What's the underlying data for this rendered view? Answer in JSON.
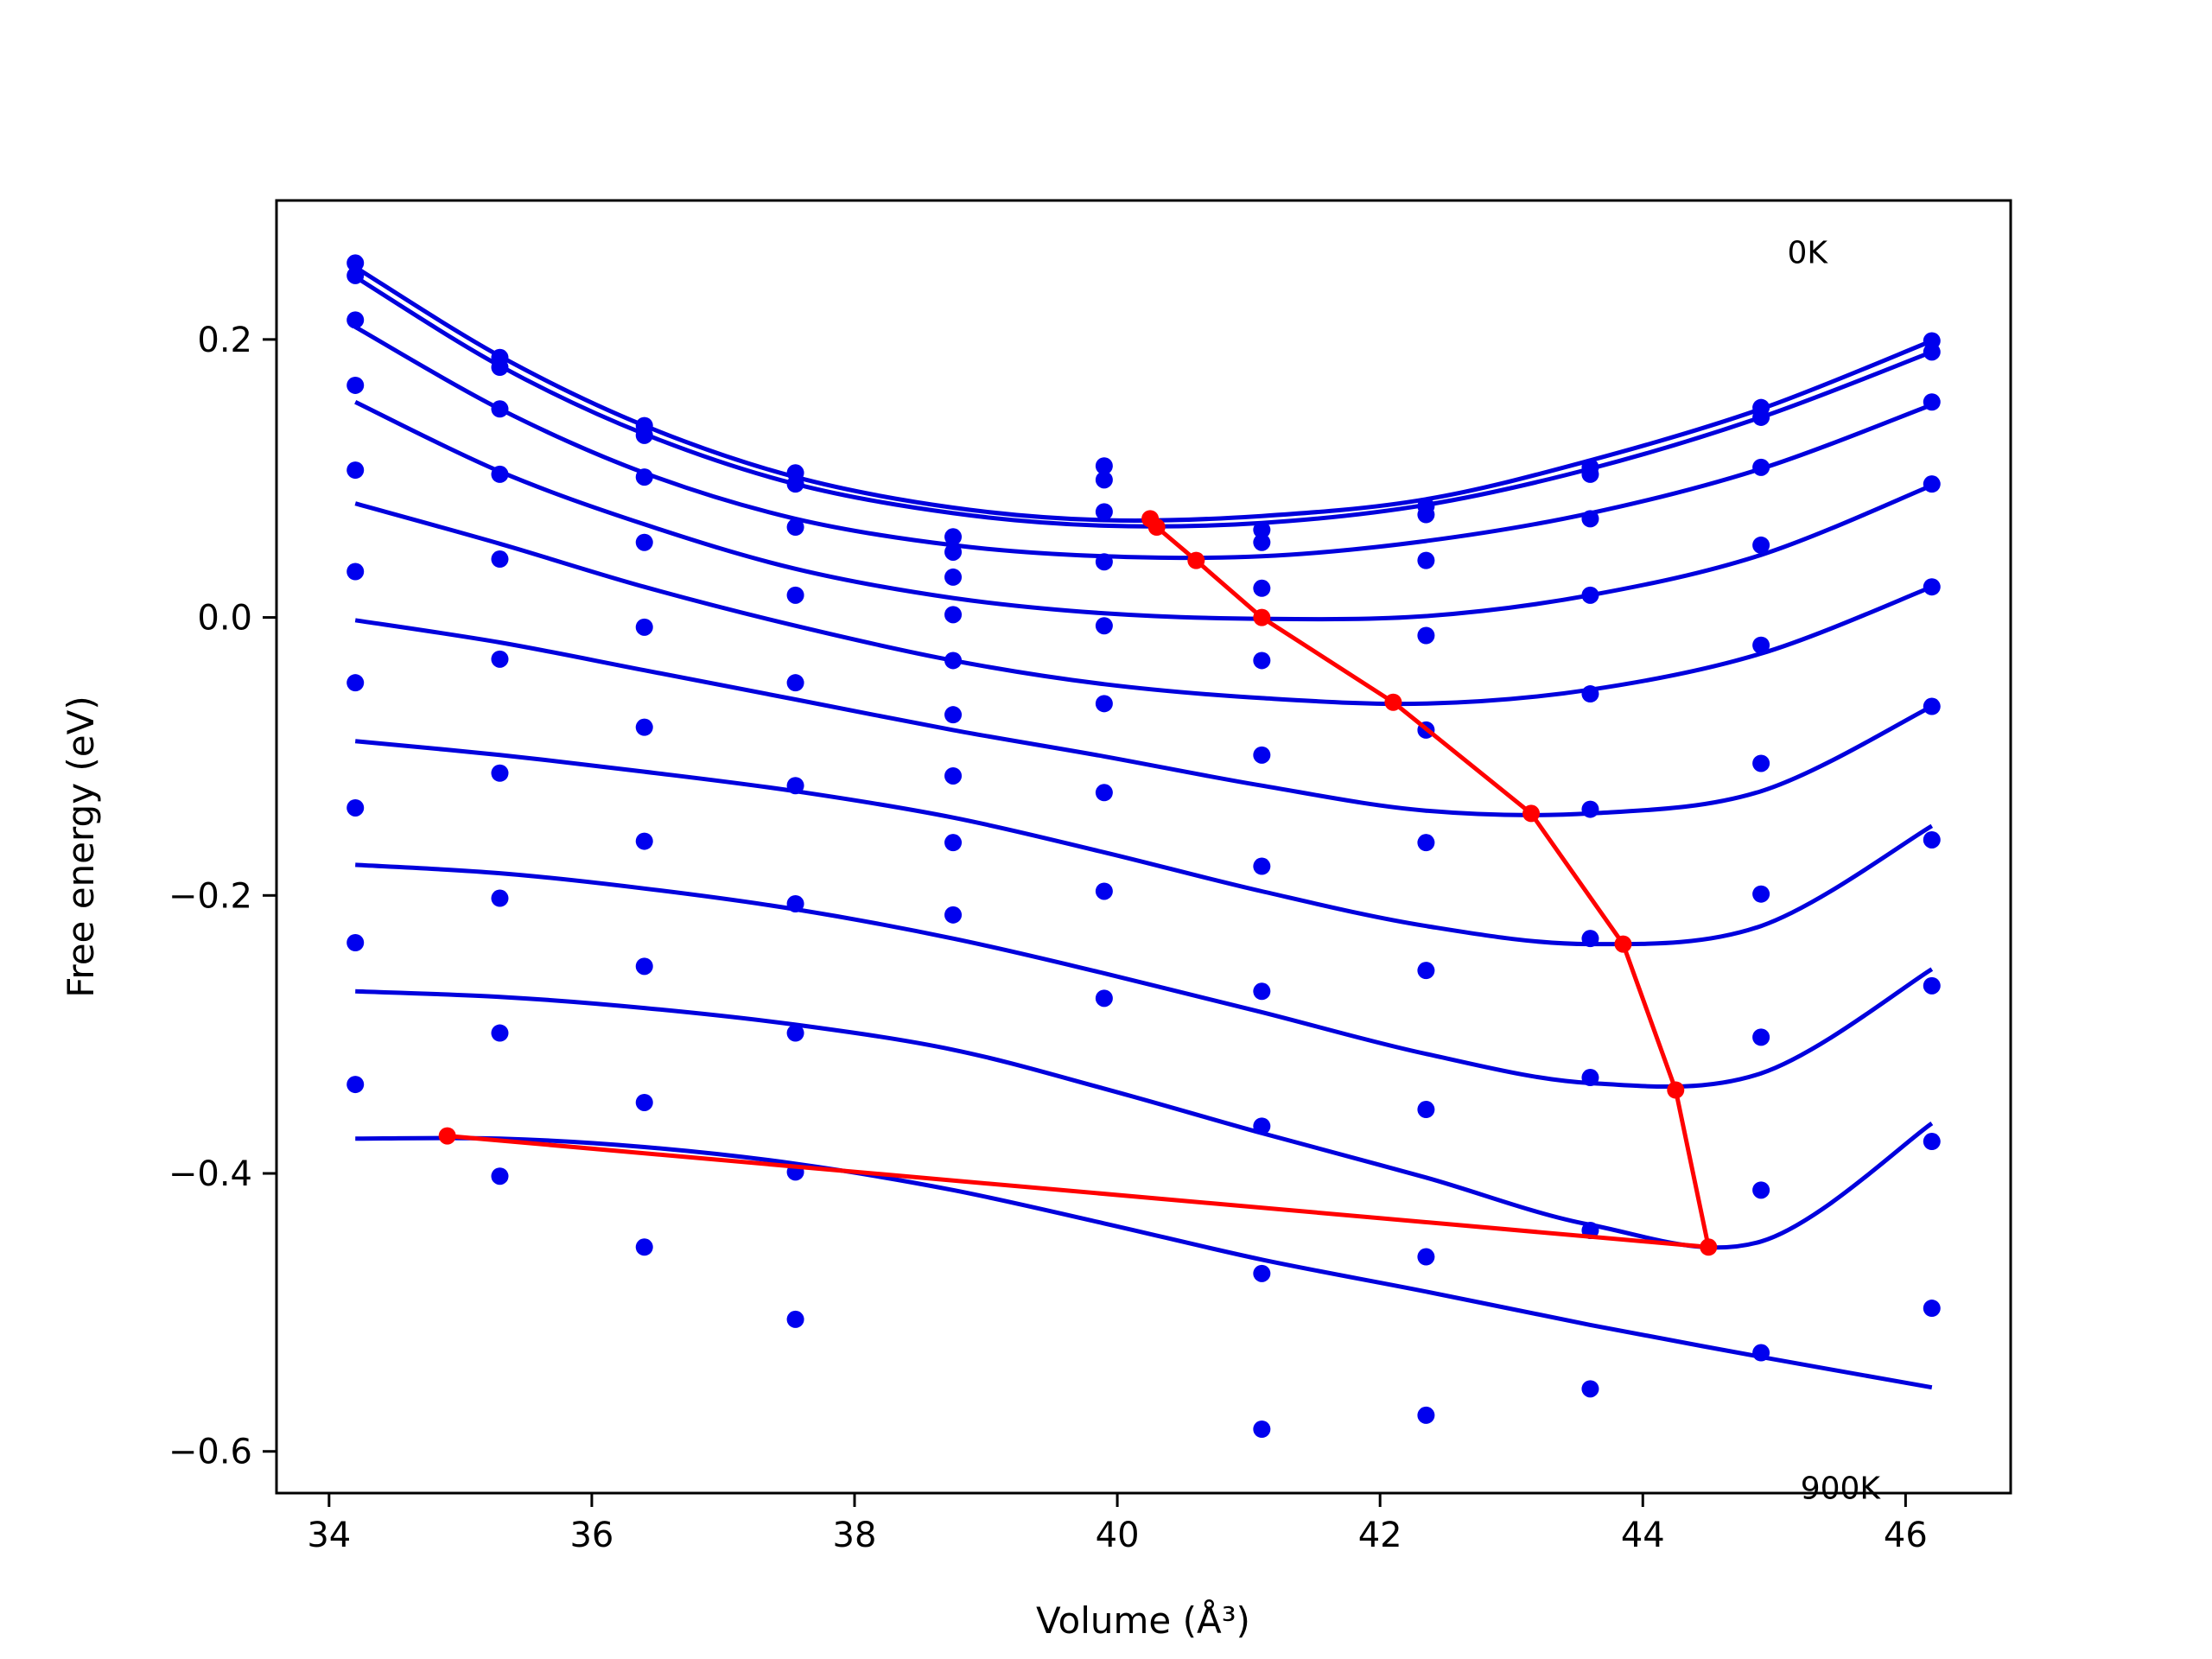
{
  "chart_data": {
    "type": "line",
    "xlabel": "Volume (Å³)",
    "ylabel": "Free energy (eV)",
    "xlim": [
      33.6,
      46.8
    ],
    "ylim": [
      -0.63,
      0.3
    ],
    "xticks": [
      34,
      36,
      38,
      40,
      42,
      44,
      46
    ],
    "yticks": [
      -0.6,
      -0.4,
      -0.2,
      0.0,
      0.2
    ],
    "xtick_labels": [
      "34",
      "36",
      "38",
      "40",
      "42",
      "44",
      "46"
    ],
    "ytick_labels": [
      "−0.6",
      "−0.4",
      "−0.2",
      "0.0",
      "0.2"
    ],
    "grid": false,
    "annotations": [
      {
        "text": "0K",
        "x": 45.1,
        "y": 0.255
      },
      {
        "text": "900K",
        "x": 45.2,
        "y": -0.634
      }
    ],
    "colors": {
      "points": "#0000ee",
      "fits": "#0000dd",
      "min_path": "#ff0000"
    },
    "volumes": [
      34.2,
      35.3,
      36.4,
      37.55,
      38.75,
      39.9,
      41.1,
      42.35,
      43.6,
      44.9,
      46.2
    ],
    "points": [
      [
        34.2,
        0.255
      ],
      [
        34.2,
        0.246
      ],
      [
        34.2,
        0.214
      ],
      [
        34.2,
        0.167
      ],
      [
        34.2,
        0.106
      ],
      [
        34.2,
        0.033
      ],
      [
        34.2,
        -0.047
      ],
      [
        34.2,
        -0.137
      ],
      [
        34.2,
        -0.234
      ],
      [
        34.2,
        -0.336
      ],
      [
        35.3,
        0.187
      ],
      [
        35.3,
        0.18
      ],
      [
        35.3,
        0.15
      ],
      [
        35.3,
        0.103
      ],
      [
        35.3,
        0.042
      ],
      [
        35.3,
        -0.03
      ],
      [
        35.3,
        -0.112
      ],
      [
        35.3,
        -0.202
      ],
      [
        35.3,
        -0.299
      ],
      [
        35.3,
        -0.402
      ],
      [
        36.4,
        0.138
      ],
      [
        36.4,
        0.131
      ],
      [
        36.4,
        0.101
      ],
      [
        36.4,
        0.054
      ],
      [
        36.4,
        -0.007
      ],
      [
        36.4,
        -0.079
      ],
      [
        36.4,
        -0.161
      ],
      [
        36.4,
        -0.251
      ],
      [
        36.4,
        -0.349
      ],
      [
        36.4,
        -0.453
      ],
      [
        37.55,
        0.104
      ],
      [
        37.55,
        0.096
      ],
      [
        37.55,
        0.065
      ],
      [
        37.55,
        0.016
      ],
      [
        37.55,
        -0.047
      ],
      [
        37.55,
        -0.121
      ],
      [
        37.55,
        -0.206
      ],
      [
        37.55,
        -0.299
      ],
      [
        37.55,
        -0.399
      ],
      [
        37.55,
        -0.505
      ],
      [
        38.75,
        0.058
      ],
      [
        38.75,
        0.047
      ],
      [
        38.75,
        0.029
      ],
      [
        38.75,
        0.002
      ],
      [
        38.75,
        -0.031
      ],
      [
        38.75,
        -0.07
      ],
      [
        38.75,
        -0.114
      ],
      [
        38.75,
        -0.162
      ],
      [
        38.75,
        -0.214
      ],
      [
        39.9,
        0.109
      ],
      [
        39.9,
        0.099
      ],
      [
        39.9,
        0.076
      ],
      [
        39.9,
        0.04
      ],
      [
        39.9,
        -0.006
      ],
      [
        39.9,
        -0.062
      ],
      [
        39.9,
        -0.126
      ],
      [
        39.9,
        -0.197
      ],
      [
        39.9,
        -0.274
      ],
      [
        41.1,
        0.063
      ],
      [
        41.1,
        0.054
      ],
      [
        41.1,
        0.021
      ],
      [
        41.1,
        -0.031
      ],
      [
        41.1,
        -0.099
      ],
      [
        41.1,
        -0.179
      ],
      [
        41.1,
        -0.269
      ],
      [
        41.1,
        -0.366
      ],
      [
        41.1,
        -0.472
      ],
      [
        41.1,
        -0.584
      ],
      [
        42.35,
        0.08
      ],
      [
        42.35,
        0.074
      ],
      [
        42.35,
        0.041
      ],
      [
        42.35,
        -0.013
      ],
      [
        42.35,
        -0.081
      ],
      [
        42.35,
        -0.162
      ],
      [
        42.35,
        -0.254
      ],
      [
        42.35,
        -0.354
      ],
      [
        42.35,
        -0.46
      ],
      [
        42.35,
        -0.574
      ],
      [
        43.6,
        0.108
      ],
      [
        43.6,
        0.103
      ],
      [
        43.6,
        0.071
      ],
      [
        43.6,
        0.016
      ],
      [
        43.6,
        -0.055
      ],
      [
        43.6,
        -0.138
      ],
      [
        43.6,
        -0.231
      ],
      [
        43.6,
        -0.331
      ],
      [
        43.6,
        -0.441
      ],
      [
        43.6,
        -0.555
      ],
      [
        44.9,
        0.151
      ],
      [
        44.9,
        0.144
      ],
      [
        44.9,
        0.108
      ],
      [
        44.9,
        0.052
      ],
      [
        44.9,
        -0.02
      ],
      [
        44.9,
        -0.105
      ],
      [
        44.9,
        -0.199
      ],
      [
        44.9,
        -0.302
      ],
      [
        44.9,
        -0.412
      ],
      [
        44.9,
        -0.529
      ],
      [
        46.2,
        0.199
      ],
      [
        46.2,
        0.191
      ],
      [
        46.2,
        0.155
      ],
      [
        46.2,
        0.096
      ],
      [
        46.2,
        0.022
      ],
      [
        46.2,
        -0.064
      ],
      [
        46.2,
        -0.16
      ],
      [
        46.2,
        -0.265
      ],
      [
        46.2,
        -0.377
      ],
      [
        46.2,
        -0.497
      ]
    ],
    "fit_curves": [
      [
        [
          34.2,
          0.252
        ],
        [
          35.3,
          0.188
        ],
        [
          36.4,
          0.138
        ],
        [
          37.55,
          0.101
        ],
        [
          38.75,
          0.079
        ],
        [
          39.9,
          0.07
        ],
        [
          41.1,
          0.073
        ],
        [
          42.35,
          0.085
        ],
        [
          43.6,
          0.113
        ],
        [
          44.9,
          0.15
        ],
        [
          46.2,
          0.199
        ]
      ],
      [
        [
          34.2,
          0.245
        ],
        [
          35.3,
          0.181
        ],
        [
          36.4,
          0.132
        ],
        [
          37.55,
          0.096
        ],
        [
          38.75,
          0.075
        ],
        [
          39.9,
          0.066
        ],
        [
          41.1,
          0.068
        ],
        [
          42.35,
          0.081
        ],
        [
          43.6,
          0.107
        ],
        [
          44.9,
          0.144
        ],
        [
          46.2,
          0.191
        ]
      ],
      [
        [
          34.2,
          0.209
        ],
        [
          35.3,
          0.15
        ],
        [
          36.4,
          0.104
        ],
        [
          37.55,
          0.071
        ],
        [
          38.75,
          0.052
        ],
        [
          39.9,
          0.044
        ],
        [
          41.1,
          0.044
        ],
        [
          42.35,
          0.055
        ],
        [
          43.6,
          0.075
        ],
        [
          44.9,
          0.107
        ],
        [
          46.2,
          0.153
        ]
      ],
      [
        [
          34.2,
          0.155
        ],
        [
          35.3,
          0.105
        ],
        [
          36.4,
          0.067
        ],
        [
          37.55,
          0.035
        ],
        [
          38.75,
          0.014
        ],
        [
          39.9,
          0.003
        ],
        [
          41.1,
          -0.001
        ],
        [
          42.35,
          0.001
        ],
        [
          43.6,
          0.016
        ],
        [
          44.9,
          0.045
        ],
        [
          46.2,
          0.095
        ]
      ],
      [
        [
          34.2,
          0.082
        ],
        [
          35.3,
          0.053
        ],
        [
          36.4,
          0.022
        ],
        [
          37.55,
          -0.006
        ],
        [
          38.75,
          -0.031
        ],
        [
          39.9,
          -0.048
        ],
        [
          41.1,
          -0.058
        ],
        [
          42.35,
          -0.062
        ],
        [
          43.6,
          -0.052
        ],
        [
          44.9,
          -0.026
        ],
        [
          46.2,
          0.022
        ]
      ],
      [
        [
          34.2,
          -0.002
        ],
        [
          35.3,
          -0.018
        ],
        [
          36.4,
          -0.038
        ],
        [
          37.55,
          -0.059
        ],
        [
          38.75,
          -0.081
        ],
        [
          39.9,
          -0.1
        ],
        [
          41.1,
          -0.121
        ],
        [
          42.35,
          -0.139
        ],
        [
          43.6,
          -0.141
        ],
        [
          44.9,
          -0.125
        ],
        [
          46.2,
          -0.064
        ]
      ],
      [
        [
          34.2,
          -0.089
        ],
        [
          35.3,
          -0.099
        ],
        [
          36.4,
          -0.111
        ],
        [
          37.55,
          -0.125
        ],
        [
          38.75,
          -0.144
        ],
        [
          39.9,
          -0.169
        ],
        [
          41.1,
          -0.197
        ],
        [
          42.35,
          -0.222
        ],
        [
          43.6,
          -0.235
        ],
        [
          44.9,
          -0.222
        ],
        [
          46.2,
          -0.15
        ]
      ],
      [
        [
          34.2,
          -0.178
        ],
        [
          35.3,
          -0.184
        ],
        [
          36.4,
          -0.195
        ],
        [
          37.55,
          -0.21
        ],
        [
          38.75,
          -0.231
        ],
        [
          39.9,
          -0.256
        ],
        [
          41.1,
          -0.284
        ],
        [
          42.35,
          -0.314
        ],
        [
          43.6,
          -0.335
        ],
        [
          44.9,
          -0.328
        ],
        [
          46.2,
          -0.253
        ]
      ],
      [
        [
          34.2,
          -0.269
        ],
        [
          35.3,
          -0.273
        ],
        [
          36.4,
          -0.281
        ],
        [
          37.55,
          -0.293
        ],
        [
          38.75,
          -0.311
        ],
        [
          39.9,
          -0.339
        ],
        [
          41.1,
          -0.371
        ],
        [
          42.35,
          -0.403
        ],
        [
          43.6,
          -0.437
        ],
        [
          44.9,
          -0.449
        ],
        [
          46.2,
          -0.364
        ]
      ],
      [
        [
          34.2,
          -0.375
        ],
        [
          35.3,
          -0.375
        ],
        [
          36.4,
          -0.381
        ],
        [
          37.55,
          -0.393
        ],
        [
          38.75,
          -0.412
        ],
        [
          39.9,
          -0.436
        ],
        [
          41.1,
          -0.462
        ],
        [
          42.35,
          -0.485
        ],
        [
          43.6,
          -0.509
        ],
        [
          44.9,
          -0.532
        ],
        [
          46.2,
          -0.554
        ]
      ]
    ],
    "minimum_path": [
      [
        40.25,
        0.071
      ],
      [
        40.3,
        0.065
      ],
      [
        40.6,
        0.041
      ],
      [
        41.1,
        0.0
      ],
      [
        42.1,
        -0.061
      ],
      [
        43.15,
        -0.141
      ],
      [
        43.85,
        -0.235
      ],
      [
        44.25,
        -0.34
      ],
      [
        44.5,
        -0.453
      ],
      [
        34.9,
        -0.373
      ]
    ]
  }
}
